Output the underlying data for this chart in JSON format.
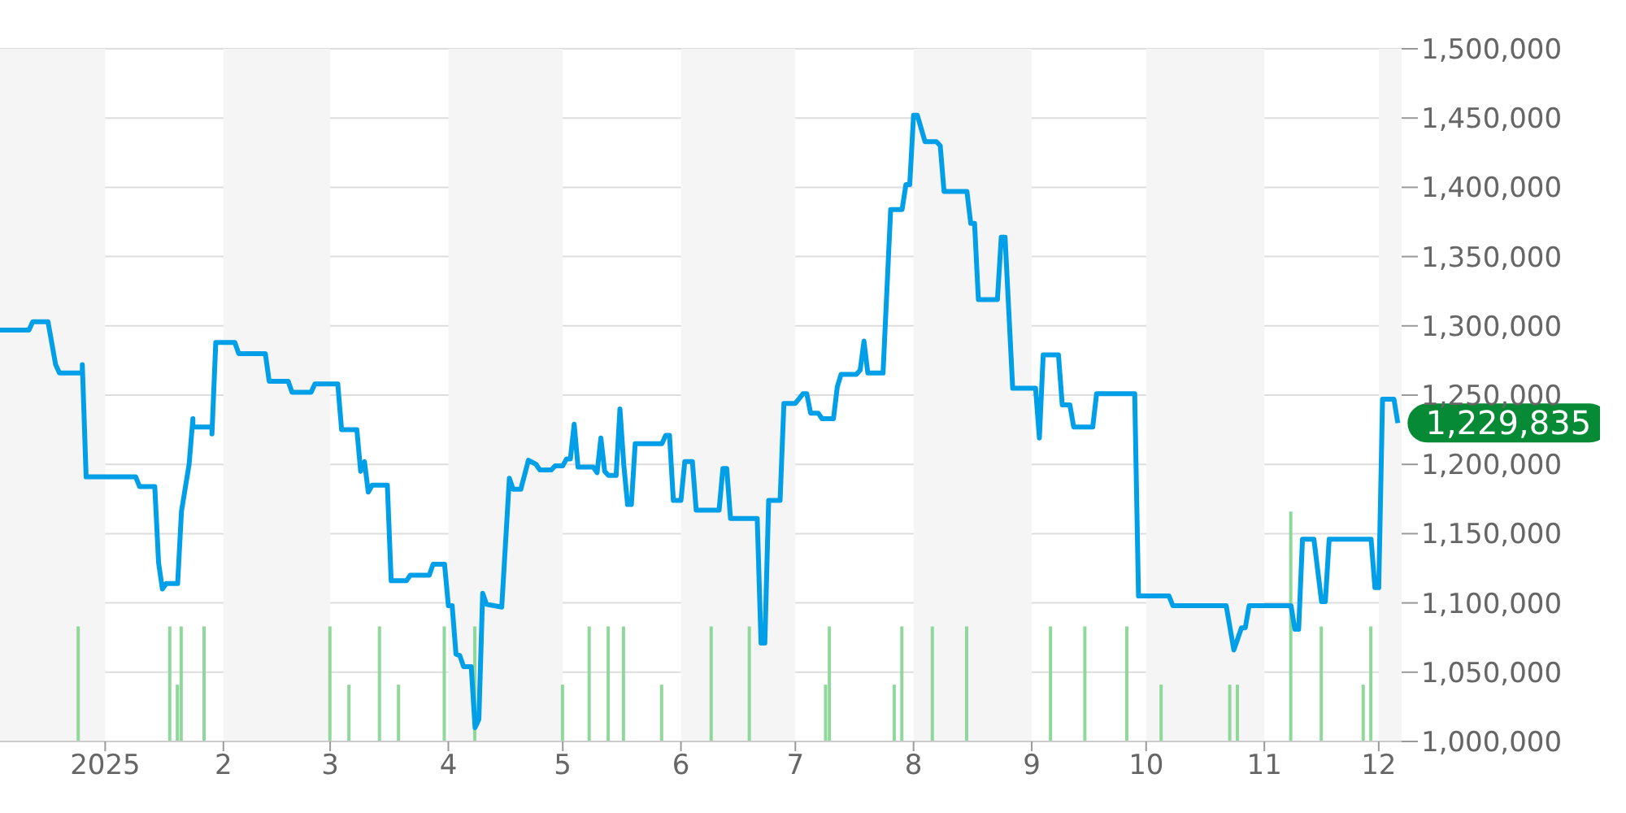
{
  "chart_data": {
    "type": "line",
    "xlim": [
      "2024-12-01",
      "2025-12-07"
    ],
    "xticks": [
      {
        "value": "2025-01-01",
        "label": "2025"
      },
      {
        "value": "2025-02-01",
        "label": "2"
      },
      {
        "value": "2025-03-01",
        "label": "3"
      },
      {
        "value": "2025-04-01",
        "label": "4"
      },
      {
        "value": "2025-05-01",
        "label": "5"
      },
      {
        "value": "2025-06-01",
        "label": "6"
      },
      {
        "value": "2025-07-01",
        "label": "7"
      },
      {
        "value": "2025-08-01",
        "label": "8"
      },
      {
        "value": "2025-09-01",
        "label": "9"
      },
      {
        "value": "2025-10-01",
        "label": "10"
      },
      {
        "value": "2025-11-01",
        "label": "11"
      },
      {
        "value": "2025-12-01",
        "label": "12"
      }
    ],
    "ylim": [
      1000000,
      1500000
    ],
    "yticks": [
      {
        "value": 1000000,
        "label": "1,000,000"
      },
      {
        "value": 1050000,
        "label": "1,050,000"
      },
      {
        "value": 1100000,
        "label": "1,100,000"
      },
      {
        "value": 1150000,
        "label": "1,150,000"
      },
      {
        "value": 1200000,
        "label": "1,200,000"
      },
      {
        "value": 1250000,
        "label": "1,250,000"
      },
      {
        "value": 1300000,
        "label": "1,300,000"
      },
      {
        "value": 1350000,
        "label": "1,350,000"
      },
      {
        "value": 1400000,
        "label": "1,400,000"
      },
      {
        "value": 1450000,
        "label": "1,450,000"
      },
      {
        "value": 1500000,
        "label": "1,500,000"
      }
    ],
    "grid": "y",
    "marker": "none",
    "line_style": "solid",
    "bands": [
      {
        "axis": "x",
        "from": "2024-12-01",
        "to": "2025-01-01",
        "color": "#f5f5f5"
      },
      {
        "axis": "x",
        "from": "2025-02-01",
        "to": "2025-03-01",
        "color": "#f5f5f5"
      },
      {
        "axis": "x",
        "from": "2025-04-01",
        "to": "2025-05-01",
        "color": "#f5f5f5"
      },
      {
        "axis": "x",
        "from": "2025-06-01",
        "to": "2025-07-01",
        "color": "#f5f5f5"
      },
      {
        "axis": "x",
        "from": "2025-08-01",
        "to": "2025-09-01",
        "color": "#f5f5f5"
      },
      {
        "axis": "x",
        "from": "2025-10-01",
        "to": "2025-11-01",
        "color": "#f5f5f5"
      },
      {
        "axis": "x",
        "from": "2025-12-01",
        "to": "2025-12-07",
        "color": "#f5f5f5"
      }
    ],
    "annotations": [
      {
        "text": "1,229,835",
        "x": "2025-12-06",
        "y": 1229835
      }
    ],
    "series": [
      {
        "color": "#009fe8",
        "x": [
          "2024-12-01",
          "2024-12-12",
          "2024-12-13",
          "2024-12-17",
          "2024-12-19",
          "2024-12-20",
          "2024-12-26",
          "2024-12-26",
          "2024-12-27",
          "2025-01-09",
          "2025-01-10",
          "2025-01-14",
          "2025-01-15",
          "2025-01-16",
          "2025-01-17",
          "2025-01-20",
          "2025-01-21",
          "2025-01-23",
          "2025-01-24",
          "2025-01-24",
          "2025-01-29",
          "2025-01-29",
          "2025-01-30",
          "2025-02-04",
          "2025-02-05",
          "2025-02-12",
          "2025-02-13",
          "2025-02-18",
          "2025-02-19",
          "2025-02-24",
          "2025-02-25",
          "2025-03-03",
          "2025-03-04",
          "2025-03-08",
          "2025-03-09",
          "2025-03-10",
          "2025-03-11",
          "2025-03-12",
          "2025-03-16",
          "2025-03-17",
          "2025-03-21",
          "2025-03-22",
          "2025-03-27",
          "2025-03-28",
          "2025-03-31",
          "2025-04-01",
          "2025-04-02",
          "2025-04-03",
          "2025-04-04",
          "2025-04-05",
          "2025-04-07",
          "2025-04-08",
          "2025-04-09",
          "2025-04-10",
          "2025-04-11",
          "2025-04-15",
          "2025-04-17",
          "2025-04-18",
          "2025-04-20",
          "2025-04-22",
          "2025-04-24",
          "2025-04-25",
          "2025-04-28",
          "2025-04-29",
          "2025-05-01",
          "2025-05-02",
          "2025-05-03",
          "2025-05-04",
          "2025-05-05",
          "2025-05-09",
          "2025-05-10",
          "2025-05-11",
          "2025-05-12",
          "2025-05-13",
          "2025-05-15",
          "2025-05-16",
          "2025-05-17",
          "2025-05-18",
          "2025-05-19",
          "2025-05-20",
          "2025-05-27",
          "2025-05-28",
          "2025-05-29",
          "2025-05-30",
          "2025-06-01",
          "2025-06-02",
          "2025-06-04",
          "2025-06-05",
          "2025-06-11",
          "2025-06-12",
          "2025-06-13",
          "2025-06-14",
          "2025-06-21",
          "2025-06-22",
          "2025-06-23",
          "2025-06-24",
          "2025-06-27",
          "2025-06-28",
          "2025-07-01",
          "2025-07-03",
          "2025-07-04",
          "2025-07-05",
          "2025-07-07",
          "2025-07-08",
          "2025-07-11",
          "2025-07-12",
          "2025-07-13",
          "2025-07-17",
          "2025-07-18",
          "2025-07-19",
          "2025-07-20",
          "2025-07-24",
          "2025-07-26",
          "2025-07-29",
          "2025-07-30",
          "2025-07-31",
          "2025-08-01",
          "2025-08-02",
          "2025-08-04",
          "2025-08-07",
          "2025-08-08",
          "2025-08-09",
          "2025-08-15",
          "2025-08-16",
          "2025-08-17",
          "2025-08-18",
          "2025-08-23",
          "2025-08-24",
          "2025-08-25",
          "2025-08-27",
          "2025-09-02",
          "2025-09-03",
          "2025-09-04",
          "2025-09-08",
          "2025-09-09",
          "2025-09-11",
          "2025-09-12",
          "2025-09-17",
          "2025-09-18",
          "2025-09-28",
          "2025-09-29",
          "2025-10-07",
          "2025-10-08",
          "2025-10-22",
          "2025-10-24",
          "2025-10-26",
          "2025-10-27",
          "2025-10-28",
          "2025-11-08",
          "2025-11-09",
          "2025-11-10",
          "2025-11-11",
          "2025-11-14",
          "2025-11-16",
          "2025-11-17",
          "2025-11-18",
          "2025-11-29",
          "2025-11-30",
          "2025-12-01",
          "2025-12-02",
          "2025-12-05",
          "2025-12-06"
        ],
        "values": [
          1297000,
          1297000,
          1303000,
          1303000,
          1272000,
          1266000,
          1266000,
          1272000,
          1191000,
          1191000,
          1184000,
          1184000,
          1129000,
          1110000,
          1114000,
          1114000,
          1166000,
          1200000,
          1233000,
          1227000,
          1227000,
          1222000,
          1288000,
          1288000,
          1280000,
          1280000,
          1260000,
          1260000,
          1252000,
          1252000,
          1258000,
          1258000,
          1225000,
          1225000,
          1195000,
          1202000,
          1180000,
          1185000,
          1185000,
          1116000,
          1116000,
          1120000,
          1120000,
          1128000,
          1128000,
          1098000,
          1098000,
          1063000,
          1062000,
          1054000,
          1054000,
          1010000,
          1016000,
          1107000,
          1099000,
          1097000,
          1190000,
          1182000,
          1182000,
          1203000,
          1200000,
          1196000,
          1196000,
          1199000,
          1199000,
          1204000,
          1204000,
          1229000,
          1198000,
          1198000,
          1194000,
          1219000,
          1195000,
          1192000,
          1192000,
          1240000,
          1200000,
          1171000,
          1171000,
          1215000,
          1215000,
          1221000,
          1221000,
          1174000,
          1174000,
          1202000,
          1202000,
          1167000,
          1167000,
          1197000,
          1197000,
          1161000,
          1161000,
          1071000,
          1071000,
          1174000,
          1174000,
          1244000,
          1244000,
          1251000,
          1251000,
          1237000,
          1237000,
          1233000,
          1233000,
          1256000,
          1265000,
          1265000,
          1268000,
          1289000,
          1266000,
          1266000,
          1384000,
          1384000,
          1402000,
          1402000,
          1452000,
          1452000,
          1433000,
          1433000,
          1430000,
          1397000,
          1397000,
          1374000,
          1374000,
          1319000,
          1319000,
          1364000,
          1364000,
          1255000,
          1255000,
          1219000,
          1279000,
          1279000,
          1243000,
          1243000,
          1227000,
          1227000,
          1251000,
          1251000,
          1105000,
          1105000,
          1098000,
          1098000,
          1066000,
          1082000,
          1082000,
          1098000,
          1098000,
          1081000,
          1081000,
          1146000,
          1146000,
          1101000,
          1101000,
          1146000,
          1146000,
          1111000,
          1111000,
          1247000,
          1247000,
          1229835
        ]
      },
      {
        "type": "bar",
        "color": "#8fd79b",
        "x": [
          "2024-12-25",
          "2025-01-18",
          "2025-01-20",
          "2025-01-21",
          "2025-01-27",
          "2025-03-01",
          "2025-03-06",
          "2025-03-14",
          "2025-03-19",
          "2025-03-31",
          "2025-04-08",
          "2025-05-01",
          "2025-05-08",
          "2025-05-13",
          "2025-05-17",
          "2025-05-27",
          "2025-06-09",
          "2025-06-19",
          "2025-07-09",
          "2025-07-10",
          "2025-07-27",
          "2025-07-29",
          "2025-08-06",
          "2025-08-15",
          "2025-09-06",
          "2025-09-15",
          "2025-09-26",
          "2025-10-05",
          "2025-10-23",
          "2025-10-25",
          "2025-11-08",
          "2025-11-16",
          "2025-11-27",
          "2025-11-29"
        ],
        "values": [
          1083000,
          1083000,
          1041000,
          1083000,
          1083000,
          1083000,
          1041000,
          1083000,
          1041000,
          1083000,
          1083000,
          1041000,
          1083000,
          1083000,
          1083000,
          1041000,
          1083000,
          1083000,
          1041000,
          1083000,
          1041000,
          1083000,
          1083000,
          1083000,
          1083000,
          1083000,
          1083000,
          1041000,
          1041000,
          1041000,
          1166000,
          1083000,
          1041000,
          1083000
        ]
      }
    ]
  }
}
